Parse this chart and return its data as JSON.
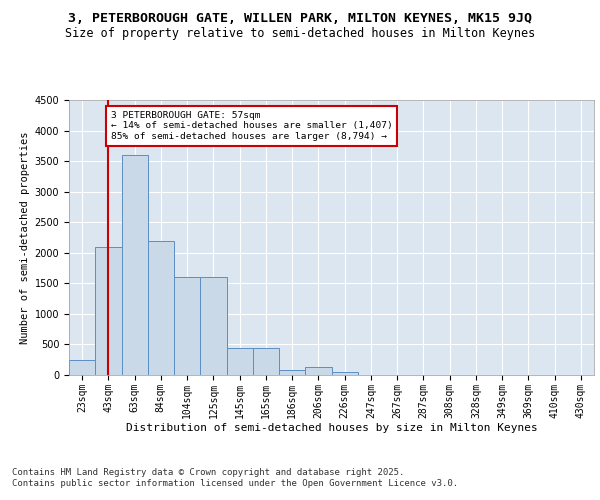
{
  "title_line1": "3, PETERBOROUGH GATE, WILLEN PARK, MILTON KEYNES, MK15 9JQ",
  "title_line2": "Size of property relative to semi-detached houses in Milton Keynes",
  "xlabel": "Distribution of semi-detached houses by size in Milton Keynes",
  "ylabel": "Number of semi-detached properties",
  "footnote": "Contains HM Land Registry data © Crown copyright and database right 2025.\nContains public sector information licensed under the Open Government Licence v3.0.",
  "bar_values": [
    250,
    2100,
    3600,
    2200,
    1600,
    1600,
    450,
    450,
    80,
    130,
    50,
    0,
    0,
    0,
    0,
    0,
    0,
    0,
    0,
    0
  ],
  "bin_labels": [
    "23sqm",
    "43sqm",
    "63sqm",
    "84sqm",
    "104sqm",
    "125sqm",
    "145sqm",
    "165sqm",
    "186sqm",
    "206sqm",
    "226sqm",
    "247sqm",
    "267sqm",
    "287sqm",
    "308sqm",
    "328sqm",
    "349sqm",
    "369sqm",
    "410sqm",
    "430sqm"
  ],
  "bar_color": "#c9d9e8",
  "bar_edge_color": "#5b8ec4",
  "vline_x": 1.0,
  "vline_color": "#cc0000",
  "annotation_text": "3 PETERBOROUGH GATE: 57sqm\n← 14% of semi-detached houses are smaller (1,407)\n85% of semi-detached houses are larger (8,794) →",
  "annotation_box_color": "#cc0000",
  "ylim": [
    0,
    4500
  ],
  "yticks": [
    0,
    500,
    1000,
    1500,
    2000,
    2500,
    3000,
    3500,
    4000,
    4500
  ],
  "fig_bg_color": "#ffffff",
  "plot_bg_color": "#dce6f1",
  "title1_fontsize": 9.5,
  "title2_fontsize": 8.5,
  "xlabel_fontsize": 8,
  "ylabel_fontsize": 7.5,
  "tick_fontsize": 7,
  "footnote_fontsize": 6.5
}
